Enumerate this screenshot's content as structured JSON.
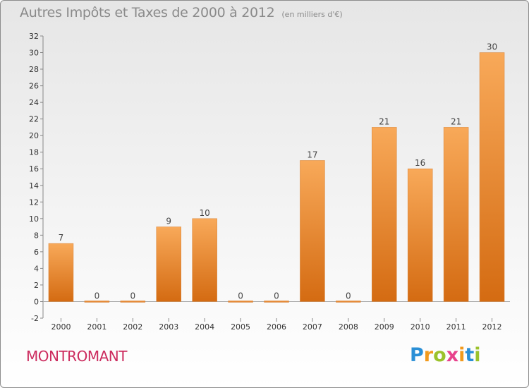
{
  "header": {
    "title": "Autres Impôts et Taxes de 2000 à 2012",
    "unit": "(en milliers d'€)"
  },
  "footer": {
    "commune": "MONTROMANT",
    "logo": {
      "letters": [
        "P",
        "r",
        "o",
        "x",
        "i",
        "t",
        "i"
      ],
      "colors": [
        "#2a8fd6",
        "#f29a1c",
        "#9bc22b",
        "#e8428c",
        "#f29a1c",
        "#2a8fd6",
        "#9bc22b"
      ]
    }
  },
  "chart_data": {
    "type": "bar",
    "title": "Autres Impôts et Taxes de 2000 à 2012",
    "subtitle": "(en milliers d'€)",
    "categories": [
      "2000",
      "2001",
      "2002",
      "2003",
      "2004",
      "2005",
      "2006",
      "2007",
      "2008",
      "2009",
      "2010",
      "2011",
      "2012"
    ],
    "values": [
      7,
      0,
      0,
      9,
      10,
      0,
      0,
      17,
      0,
      21,
      16,
      21,
      30
    ],
    "ylim": [
      -2,
      32
    ],
    "yticks": [
      -2,
      0,
      2,
      4,
      6,
      8,
      10,
      12,
      14,
      16,
      18,
      20,
      22,
      24,
      26,
      28,
      30,
      32
    ],
    "grid": false,
    "bar_color": "#f5a04f"
  }
}
